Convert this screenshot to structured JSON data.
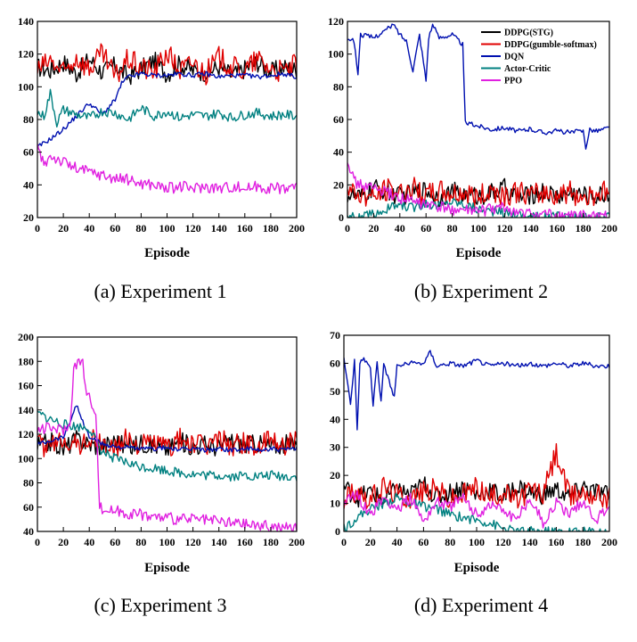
{
  "colors": {
    "DDPG(STG)": "#000000",
    "DDPG(gumble-softmax)": "#e00000",
    "DQN": "#0010b0",
    "Actor-Critic": "#008080",
    "PPO": "#e020e0"
  },
  "legend": {
    "entries": [
      "DDPG(STG)",
      "DDPG(gumble-softmax)",
      "DQN",
      "Actor-Critic",
      "PPO"
    ],
    "placement": "top-right of panel (b)"
  },
  "chart_data": [
    {
      "type": "line",
      "caption": "(a)  Experiment  1",
      "xlabel": "Episode",
      "ylabel": "",
      "xlim": [
        0,
        200
      ],
      "ylim": [
        20,
        140
      ],
      "xticks": [
        0,
        20,
        40,
        60,
        80,
        100,
        120,
        140,
        160,
        180,
        200
      ],
      "yticks": [
        20,
        40,
        60,
        80,
        100,
        120,
        140
      ],
      "grid": false,
      "series": [
        {
          "name": "DDPG(STG)",
          "x": [
            0,
            10,
            20,
            30,
            40,
            50,
            60,
            70,
            80,
            90,
            100,
            110,
            120,
            130,
            140,
            150,
            160,
            170,
            180,
            190,
            200
          ],
          "y": [
            112,
            110,
            115,
            108,
            117,
            109,
            113,
            106,
            111,
            116,
            108,
            114,
            110,
            109,
            112,
            107,
            111,
            115,
            109,
            112,
            110
          ]
        },
        {
          "name": "DDPG(gumble-softmax)",
          "x": [
            0,
            10,
            20,
            30,
            40,
            50,
            60,
            70,
            80,
            90,
            100,
            110,
            120,
            130,
            140,
            150,
            160,
            170,
            180,
            190,
            200
          ],
          "y": [
            110,
            116,
            108,
            118,
            111,
            120,
            106,
            117,
            112,
            109,
            121,
            110,
            115,
            108,
            118,
            112,
            110,
            117,
            111,
            109,
            114
          ]
        },
        {
          "name": "DQN",
          "x": [
            0,
            10,
            20,
            30,
            40,
            50,
            60,
            65,
            70,
            80,
            90,
            100,
            110,
            120,
            130,
            140,
            150,
            160,
            170,
            180,
            190,
            200
          ],
          "y": [
            63,
            68,
            74,
            82,
            90,
            83,
            92,
            102,
            106,
            108,
            107,
            107,
            108,
            107,
            108,
            106,
            107,
            107,
            106,
            107,
            108,
            106
          ]
        },
        {
          "name": "Actor-Critic",
          "x": [
            0,
            5,
            10,
            15,
            20,
            30,
            40,
            50,
            60,
            70,
            80,
            90,
            100,
            110,
            120,
            130,
            140,
            150,
            160,
            170,
            180,
            190,
            200
          ],
          "y": [
            84,
            82,
            96,
            78,
            86,
            83,
            81,
            85,
            84,
            80,
            87,
            82,
            85,
            81,
            83,
            82,
            84,
            81,
            83,
            84,
            82,
            83,
            82
          ]
        },
        {
          "name": "PPO",
          "x": [
            0,
            5,
            10,
            20,
            30,
            40,
            50,
            60,
            70,
            80,
            90,
            100,
            110,
            120,
            130,
            140,
            150,
            160,
            170,
            180,
            190,
            200
          ],
          "y": [
            63,
            52,
            58,
            54,
            50,
            48,
            46,
            44,
            43,
            41,
            40,
            38,
            39,
            38,
            39,
            38,
            39,
            38,
            39,
            38,
            38,
            39
          ]
        }
      ]
    },
    {
      "type": "line",
      "caption": "(b)  Experiment  2",
      "xlabel": "Episode",
      "ylabel": "",
      "xlim": [
        0,
        200
      ],
      "ylim": [
        0,
        120
      ],
      "xticks": [
        0,
        20,
        40,
        60,
        80,
        100,
        120,
        140,
        160,
        180,
        200
      ],
      "yticks": [
        0,
        20,
        40,
        60,
        80,
        100,
        120
      ],
      "grid": false,
      "series": [
        {
          "name": "DDPG(STG)",
          "x": [
            0,
            10,
            20,
            30,
            40,
            50,
            60,
            70,
            80,
            90,
            100,
            110,
            120,
            130,
            140,
            150,
            160,
            170,
            180,
            190,
            200
          ],
          "y": [
            14,
            12,
            18,
            16,
            13,
            15,
            17,
            12,
            16,
            14,
            13,
            15,
            18,
            12,
            14,
            16,
            13,
            15,
            14,
            13,
            15
          ]
        },
        {
          "name": "DDPG(gumble-softmax)",
          "x": [
            0,
            10,
            20,
            30,
            40,
            50,
            60,
            70,
            80,
            90,
            100,
            110,
            120,
            130,
            140,
            150,
            160,
            170,
            180,
            190,
            200
          ],
          "y": [
            16,
            14,
            12,
            17,
            15,
            18,
            13,
            16,
            14,
            15,
            12,
            17,
            14,
            16,
            13,
            15,
            14,
            16,
            12,
            15,
            16
          ]
        },
        {
          "name": "DQN",
          "x": [
            0,
            5,
            8,
            10,
            20,
            30,
            35,
            40,
            45,
            50,
            55,
            60,
            62,
            65,
            70,
            80,
            88,
            90,
            100,
            110,
            120,
            130,
            140,
            150,
            160,
            170,
            180,
            182,
            185,
            190,
            200
          ],
          "y": [
            110,
            108,
            88,
            112,
            110,
            115,
            118,
            112,
            108,
            90,
            112,
            84,
            110,
            118,
            110,
            112,
            106,
            58,
            56,
            54,
            55,
            53,
            54,
            52,
            53,
            52,
            53,
            43,
            54,
            53,
            55
          ]
        },
        {
          "name": "Actor-Critic",
          "x": [
            0,
            10,
            20,
            30,
            40,
            50,
            60,
            70,
            80,
            90,
            100,
            110,
            120,
            130,
            140,
            150,
            160,
            170,
            180,
            190,
            200
          ],
          "y": [
            1,
            0,
            2,
            5,
            8,
            6,
            9,
            7,
            10,
            8,
            5,
            4,
            3,
            2,
            1,
            0,
            1,
            0,
            1,
            0,
            0
          ]
        },
        {
          "name": "PPO",
          "x": [
            0,
            5,
            10,
            20,
            30,
            40,
            50,
            60,
            70,
            80,
            90,
            100,
            110,
            120,
            130,
            140,
            150,
            160,
            170,
            180,
            190,
            200
          ],
          "y": [
            37,
            22,
            20,
            18,
            15,
            12,
            10,
            8,
            6,
            5,
            4,
            4,
            5,
            6,
            3,
            2,
            2,
            1,
            1,
            1,
            1,
            1
          ]
        }
      ]
    },
    {
      "type": "line",
      "caption": "(c)  Experiment  3",
      "xlabel": "Episode",
      "ylabel": "",
      "xlim": [
        0,
        200
      ],
      "ylim": [
        40,
        200
      ],
      "xticks": [
        0,
        20,
        40,
        60,
        80,
        100,
        120,
        140,
        160,
        180,
        200
      ],
      "yticks": [
        40,
        60,
        80,
        100,
        120,
        140,
        160,
        180,
        200
      ],
      "grid": false,
      "series": [
        {
          "name": "DDPG(STG)",
          "x": [
            0,
            10,
            20,
            30,
            40,
            50,
            60,
            70,
            80,
            90,
            100,
            110,
            120,
            130,
            140,
            150,
            160,
            170,
            180,
            190,
            200
          ],
          "y": [
            110,
            114,
            108,
            116,
            112,
            110,
            115,
            109,
            113,
            111,
            108,
            114,
            110,
            112,
            109,
            115,
            111,
            113,
            110,
            112,
            111
          ]
        },
        {
          "name": "DDPG(gumble-softmax)",
          "x": [
            0,
            10,
            20,
            30,
            40,
            50,
            60,
            70,
            80,
            90,
            100,
            110,
            120,
            130,
            140,
            150,
            160,
            170,
            180,
            190,
            200
          ],
          "y": [
            112,
            108,
            118,
            110,
            116,
            112,
            108,
            117,
            111,
            114,
            109,
            116,
            112,
            110,
            117,
            111,
            114,
            109,
            115,
            112,
            113
          ]
        },
        {
          "name": "DQN",
          "x": [
            0,
            10,
            20,
            25,
            30,
            35,
            40,
            50,
            60,
            70,
            80,
            90,
            100,
            110,
            120,
            130,
            140,
            150,
            160,
            170,
            180,
            190,
            200
          ],
          "y": [
            112,
            115,
            118,
            130,
            145,
            130,
            118,
            112,
            110,
            109,
            108,
            108,
            109,
            107,
            108,
            107,
            108,
            107,
            108,
            107,
            108,
            107,
            108
          ]
        },
        {
          "name": "Actor-Critic",
          "x": [
            0,
            10,
            20,
            30,
            40,
            45,
            50,
            60,
            70,
            80,
            90,
            100,
            110,
            120,
            130,
            140,
            150,
            160,
            170,
            180,
            190,
            200
          ],
          "y": [
            137,
            132,
            128,
            126,
            125,
            115,
            105,
            100,
            96,
            93,
            92,
            90,
            88,
            87,
            86,
            86,
            85,
            86,
            85,
            86,
            85,
            85
          ]
        },
        {
          "name": "PPO",
          "x": [
            0,
            10,
            20,
            25,
            28,
            30,
            35,
            38,
            40,
            45,
            48,
            50,
            60,
            70,
            80,
            90,
            100,
            110,
            120,
            130,
            140,
            150,
            160,
            170,
            180,
            190,
            200
          ],
          "y": [
            124,
            125,
            124,
            126,
            174,
            178,
            180,
            150,
            150,
            140,
            60,
            58,
            57,
            55,
            54,
            52,
            51,
            50,
            50,
            49,
            48,
            47,
            46,
            45,
            44,
            43,
            43
          ]
        }
      ]
    },
    {
      "type": "line",
      "caption": "(d)  Experiment  4",
      "xlabel": "Episode",
      "ylabel": "",
      "xlim": [
        0,
        200
      ],
      "ylim": [
        0,
        70
      ],
      "xticks": [
        0,
        20,
        40,
        60,
        80,
        100,
        120,
        140,
        160,
        180,
        200
      ],
      "yticks": [
        0,
        10,
        20,
        30,
        40,
        50,
        60,
        70
      ],
      "grid": false,
      "series": [
        {
          "name": "DDPG(STG)",
          "x": [
            0,
            10,
            20,
            30,
            40,
            50,
            60,
            70,
            80,
            90,
            100,
            110,
            120,
            130,
            140,
            150,
            160,
            170,
            180,
            190,
            200
          ],
          "y": [
            16,
            12,
            14,
            11,
            15,
            13,
            17,
            12,
            14,
            16,
            13,
            15,
            12,
            16,
            14,
            13,
            15,
            12,
            16,
            14,
            13
          ]
        },
        {
          "name": "DDPG(gumble-softmax)",
          "x": [
            0,
            10,
            20,
            30,
            40,
            50,
            60,
            70,
            80,
            90,
            100,
            110,
            120,
            130,
            140,
            150,
            160,
            170,
            180,
            190,
            200
          ],
          "y": [
            12,
            15,
            11,
            16,
            13,
            12,
            14,
            15,
            11,
            13,
            16,
            12,
            14,
            11,
            15,
            13,
            28,
            12,
            14,
            13,
            12
          ]
        },
        {
          "name": "DQN",
          "x": [
            0,
            5,
            8,
            10,
            12,
            15,
            20,
            22,
            25,
            28,
            30,
            35,
            38,
            40,
            50,
            60,
            65,
            70,
            80,
            90,
            100,
            110,
            120,
            130,
            140,
            150,
            160,
            170,
            180,
            190,
            200
          ],
          "y": [
            62,
            45,
            61,
            36,
            60,
            62,
            58,
            45,
            61,
            46,
            60,
            52,
            48,
            59,
            60,
            60,
            64,
            59,
            60,
            59,
            61,
            59,
            60,
            59,
            60,
            59,
            60,
            59,
            60,
            59,
            59
          ]
        },
        {
          "name": "Actor-Critic",
          "x": [
            0,
            10,
            20,
            30,
            40,
            50,
            60,
            70,
            80,
            90,
            100,
            110,
            120,
            130,
            140,
            150,
            160,
            170,
            180,
            190,
            200
          ],
          "y": [
            1,
            5,
            8,
            10,
            12,
            10,
            9,
            8,
            6,
            5,
            4,
            3,
            1,
            0,
            0,
            0,
            0,
            0,
            0,
            0,
            0
          ]
        },
        {
          "name": "PPO",
          "x": [
            0,
            10,
            20,
            30,
            40,
            50,
            60,
            70,
            80,
            90,
            100,
            110,
            120,
            130,
            140,
            150,
            160,
            170,
            180,
            190,
            200
          ],
          "y": [
            11,
            13,
            6,
            12,
            8,
            12,
            4,
            11,
            9,
            12,
            6,
            10,
            8,
            4,
            12,
            3,
            10,
            6,
            11,
            4,
            9
          ]
        }
      ]
    }
  ]
}
